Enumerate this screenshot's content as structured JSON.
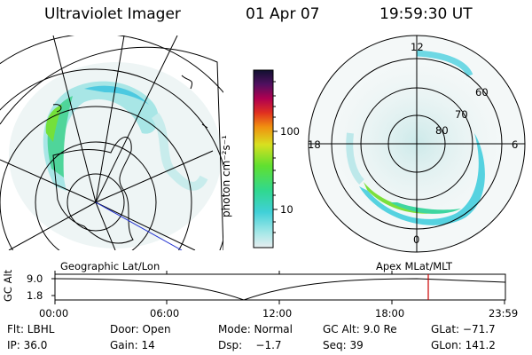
{
  "header": {
    "instrument": "Ultraviolet Imager",
    "date": "01 Apr 07",
    "time": "19:59:30 UT"
  },
  "colorbar": {
    "unit_label": "photon cm⁻²s⁻¹",
    "ticks": [
      "100",
      "10"
    ]
  },
  "polar_plot": {
    "mlt_labels": [
      "12",
      "18",
      "6",
      "0"
    ],
    "lat_labels": [
      "60",
      "70",
      "80"
    ]
  },
  "timeline": {
    "left_title": "Geographic Lat/Lon",
    "right_title": "Apex MLat/MLT",
    "axis_label": "GC Alt",
    "y_ticks": [
      "9.0",
      "1.8"
    ],
    "x_ticks": [
      "00:00",
      "06:00",
      "12:00",
      "18:00",
      "23:59"
    ],
    "current_time_color": "#cc0000"
  },
  "info": {
    "row1": [
      "Flt: LBHL",
      "Door: Open",
      "Mode: Normal",
      "GC Alt: 9.0 Re",
      "GLat: −71.7"
    ],
    "row2": [
      "IP: 36.0",
      "Gain: 14",
      "Dsp:    −1.7",
      "Seq: 39",
      "GLon: 141.2"
    ]
  }
}
